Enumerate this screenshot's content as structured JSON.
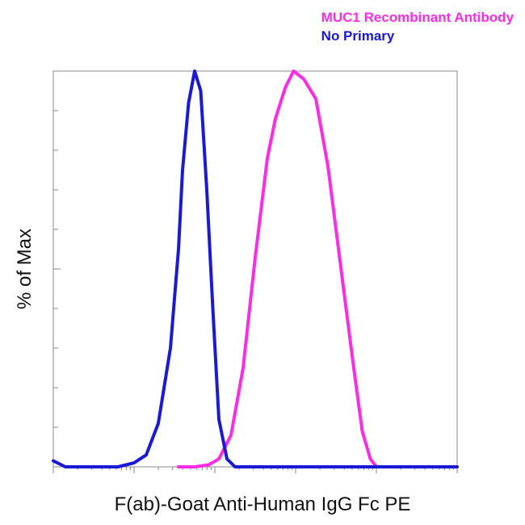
{
  "chart_data": {
    "type": "line",
    "title": "",
    "xlabel": "F(ab)-Goat Anti-Human IgG Fc PE",
    "ylabel": "% of Max",
    "xscale": "log",
    "xlim": [
      0,
      10
    ],
    "ylim": [
      0,
      100
    ],
    "grid": false,
    "legend_position": "top-right",
    "series": [
      {
        "name": "MUC1 Recombinant Antibody",
        "color": "#ff2ce6",
        "x": [
          3.1,
          3.5,
          3.85,
          4.1,
          4.4,
          4.7,
          5.0,
          5.3,
          5.5,
          5.75,
          5.95,
          6.2,
          6.5,
          6.8,
          7.1,
          7.4,
          7.65,
          7.85,
          8.0,
          8.3
        ],
        "y": [
          0,
          0,
          0.5,
          2,
          8,
          25,
          53,
          78,
          88,
          96,
          100,
          98,
          93,
          76,
          52,
          28,
          9,
          2,
          0,
          0
        ]
      },
      {
        "name": "No Primary",
        "color": "#1a1ad6",
        "x": [
          0.0,
          0.3,
          1.0,
          1.6,
          2.0,
          2.3,
          2.6,
          2.9,
          3.1,
          3.2,
          3.35,
          3.5,
          3.65,
          3.8,
          3.95,
          4.1,
          4.3,
          4.5,
          10.0
        ],
        "y": [
          1.5,
          0,
          0,
          0,
          1,
          3,
          11,
          30,
          55,
          75,
          92,
          100,
          95,
          70,
          40,
          12,
          2,
          0,
          0
        ]
      }
    ]
  }
}
